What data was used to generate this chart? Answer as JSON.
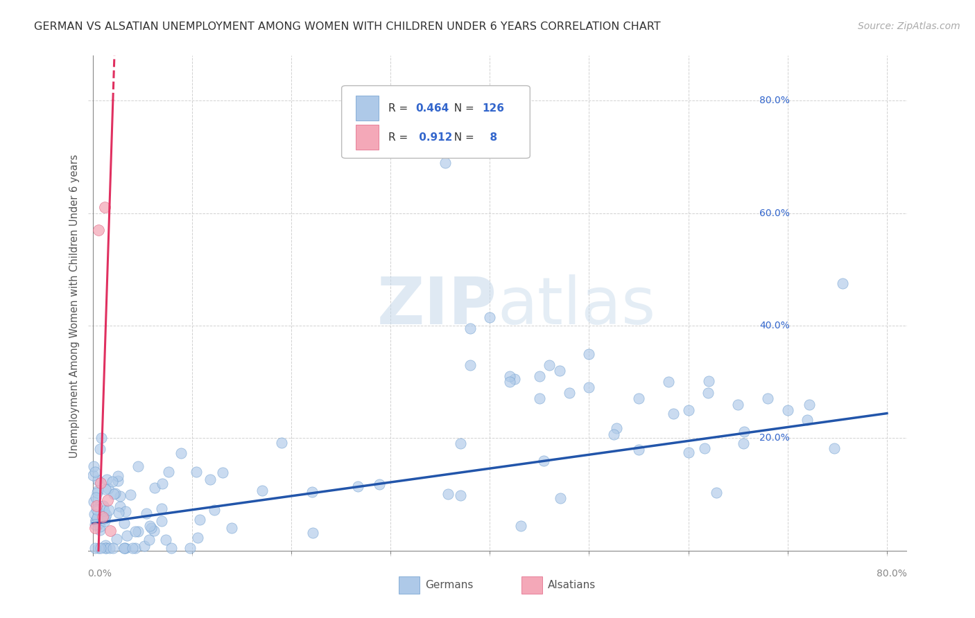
{
  "title": "GERMAN VS ALSATIAN UNEMPLOYMENT AMONG WOMEN WITH CHILDREN UNDER 6 YEARS CORRELATION CHART",
  "source": "Source: ZipAtlas.com",
  "ylabel": "Unemployment Among Women with Children Under 6 years",
  "watermark": "ZIPatlas",
  "xlim": [
    -0.005,
    0.82
  ],
  "ylim": [
    -0.01,
    0.88
  ],
  "german_R": 0.464,
  "german_N": 126,
  "alsatian_R": 0.912,
  "alsatian_N": 8,
  "german_color": "#aec9e8",
  "alsatian_color": "#f4a8b8",
  "german_line_color": "#2255aa",
  "alsatian_line_color": "#e03060",
  "background_color": "#ffffff",
  "grid_color": "#cccccc",
  "title_color": "#333333",
  "legend_R_N_color": "#3366cc",
  "german_slope": 0.245,
  "german_intercept": 0.048,
  "alsatian_slope": 55.0,
  "alsatian_intercept": -0.32
}
